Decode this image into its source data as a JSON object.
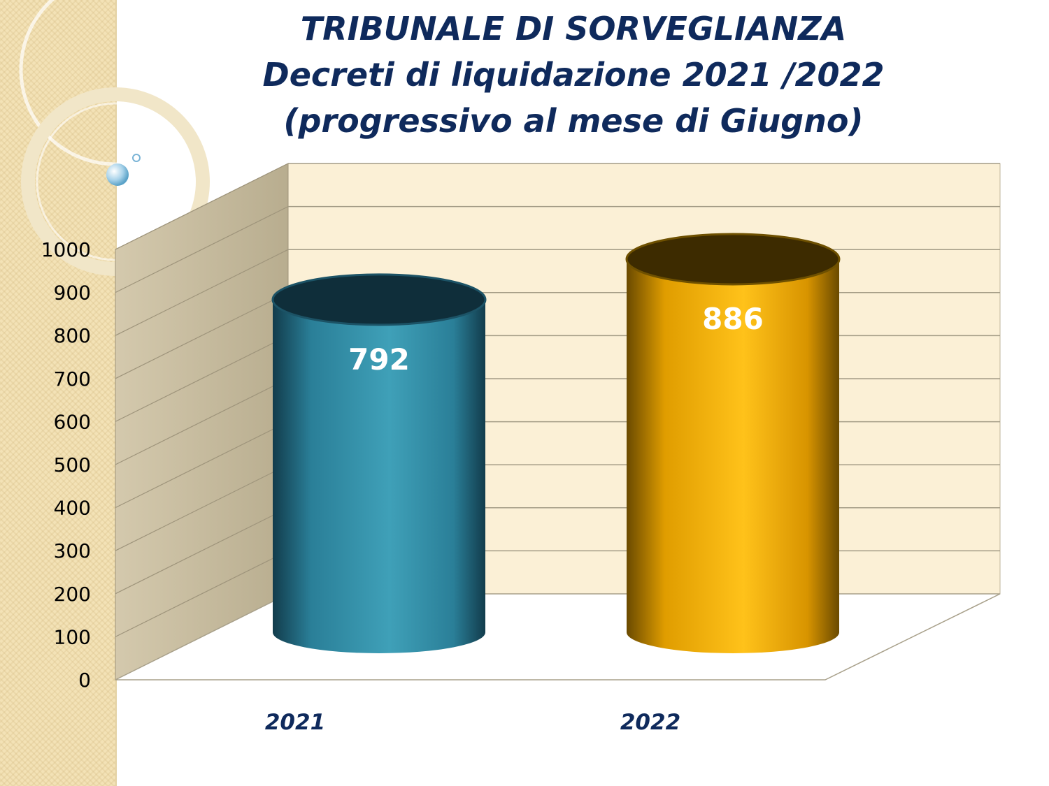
{
  "title": {
    "line1": "TRIBUNALE DI SORVEGLIANZA",
    "line2": "Decreti di liquidazione 2021 /2022",
    "line3": "(progressivo al mese di Giugno)"
  },
  "colors": {
    "series_2021": "#2a7f98",
    "series_2022": "#f0a800",
    "title": "#0f2a5c",
    "wall": "#fbf0d6",
    "side_wall": "#c8bc9c"
  },
  "chart_data": {
    "type": "bar",
    "style": "3d-cylinder",
    "categories": [
      "2021",
      "2022"
    ],
    "values": [
      792,
      886
    ],
    "data_labels": [
      "792",
      "886"
    ],
    "title": "TRIBUNALE DI SORVEGLIANZA Decreti di liquidazione 2021 /2022 (progressivo al mese di Giugno)",
    "ylim": [
      0,
      1000
    ],
    "yticks": [
      0,
      100,
      200,
      300,
      400,
      500,
      600,
      700,
      800,
      900,
      1000
    ],
    "grid": true,
    "legend": "none"
  }
}
